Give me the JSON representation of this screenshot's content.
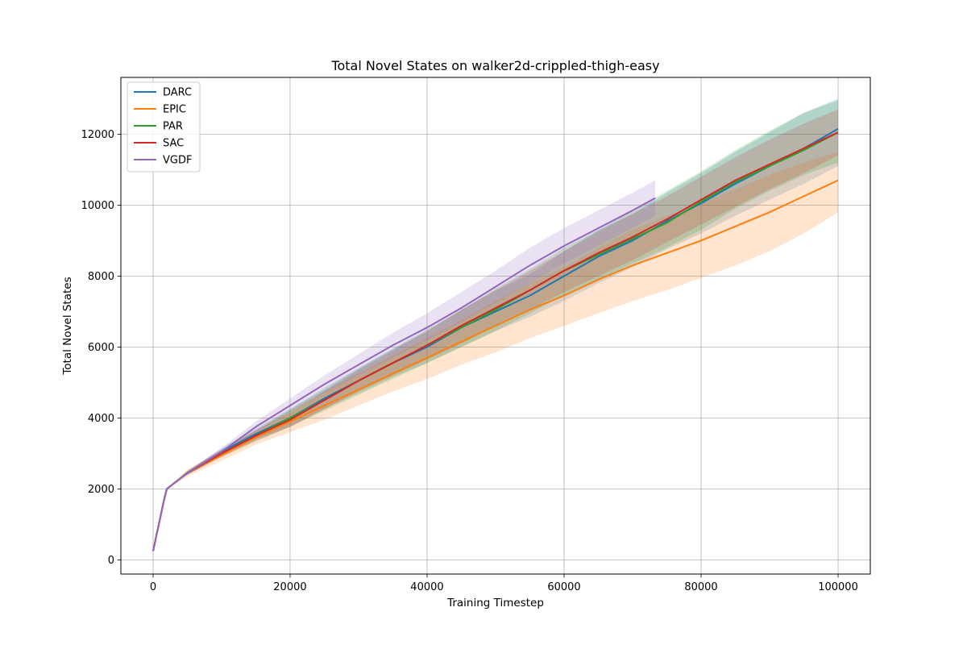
{
  "chart_data": {
    "type": "line",
    "title": "Total Novel States on walker2d-crippled-thigh-easy",
    "xlabel": "Training Timestep",
    "ylabel": "Total Novel States",
    "xlim": [
      -4700,
      104700
    ],
    "ylim": [
      -400,
      13600
    ],
    "xticks": [
      0,
      20000,
      40000,
      60000,
      80000,
      100000
    ],
    "yticks": [
      0,
      2000,
      4000,
      6000,
      8000,
      10000,
      12000
    ],
    "grid": true,
    "legend_position": "top-left",
    "series": [
      {
        "name": "DARC",
        "color": "#1f77b4",
        "x": [
          0,
          500,
          1000,
          1500,
          2000,
          5000,
          10000,
          15000,
          20000,
          25000,
          30000,
          35000,
          40000,
          45000,
          50000,
          55000,
          60000,
          65000,
          70000,
          75000,
          80000,
          85000,
          90000,
          95000,
          100000
        ],
        "y": [
          250,
          700,
          1150,
          1600,
          2000,
          2450,
          3050,
          3550,
          4000,
          4550,
          5050,
          5550,
          6000,
          6550,
          7000,
          7450,
          8000,
          8550,
          9000,
          9550,
          10050,
          10600,
          11100,
          11600,
          12150
        ],
        "lower": [
          250,
          700,
          1150,
          1600,
          2000,
          2400,
          2950,
          3400,
          3750,
          4250,
          4700,
          5150,
          5550,
          6000,
          6450,
          6850,
          7300,
          7800,
          8250,
          8750,
          9200,
          9700,
          10150,
          10600,
          11100
        ],
        "upper": [
          250,
          700,
          1150,
          1600,
          2000,
          2500,
          3150,
          3700,
          4250,
          4850,
          5400,
          5950,
          6450,
          7050,
          7600,
          8050,
          8700,
          9300,
          9750,
          10350,
          10900,
          11500,
          12050,
          12600,
          13000
        ]
      },
      {
        "name": "EPIC",
        "color": "#ff7f0e",
        "x": [
          0,
          500,
          1000,
          1500,
          2000,
          5000,
          10000,
          15000,
          20000,
          25000,
          30000,
          35000,
          40000,
          45000,
          50000,
          55000,
          60000,
          65000,
          70000,
          75000,
          80000,
          85000,
          90000,
          95000,
          100000
        ],
        "y": [
          250,
          700,
          1150,
          1600,
          2000,
          2450,
          2950,
          3450,
          3900,
          4350,
          4800,
          5250,
          5700,
          6150,
          6600,
          7050,
          7450,
          7900,
          8300,
          8650,
          9000,
          9400,
          9800,
          10250,
          10700
        ],
        "lower": [
          250,
          700,
          1150,
          1600,
          2000,
          2350,
          2800,
          3250,
          3600,
          3950,
          4350,
          4750,
          5100,
          5500,
          5850,
          6250,
          6600,
          6950,
          7300,
          7600,
          7950,
          8300,
          8700,
          9200,
          9800
        ],
        "upper": [
          250,
          700,
          1150,
          1600,
          2000,
          2550,
          3100,
          3650,
          4200,
          4750,
          5250,
          5750,
          6250,
          6750,
          7300,
          7800,
          8250,
          8800,
          9300,
          9700,
          10050,
          10450,
          10850,
          11200,
          11500
        ]
      },
      {
        "name": "PAR",
        "color": "#2ca02c",
        "x": [
          0,
          500,
          1000,
          1500,
          2000,
          5000,
          10000,
          15000,
          20000,
          25000,
          30000,
          35000,
          40000,
          45000,
          50000,
          55000,
          60000,
          65000,
          70000,
          75000,
          80000,
          85000,
          90000,
          95000,
          100000
        ],
        "y": [
          250,
          700,
          1150,
          1600,
          2000,
          2450,
          3000,
          3500,
          4000,
          4500,
          5050,
          5550,
          6050,
          6550,
          7050,
          7600,
          8150,
          8600,
          9050,
          9500,
          10100,
          10650,
          11100,
          11550,
          12050
        ],
        "lower": [
          250,
          700,
          1150,
          1600,
          2000,
          2400,
          2900,
          3350,
          3750,
          4200,
          4650,
          5100,
          5550,
          6000,
          6450,
          6950,
          7450,
          7900,
          8350,
          8800,
          9300,
          9900,
          10400,
          10850,
          11200
        ],
        "upper": [
          250,
          700,
          1150,
          1600,
          2000,
          2500,
          3100,
          3650,
          4250,
          4800,
          5400,
          5950,
          6500,
          7050,
          7650,
          8200,
          8800,
          9300,
          9850,
          10400,
          10950,
          11550,
          12100,
          12600,
          12950
        ]
      },
      {
        "name": "SAC",
        "color": "#d62728",
        "x": [
          0,
          500,
          1000,
          1500,
          2000,
          5000,
          10000,
          15000,
          20000,
          25000,
          30000,
          35000,
          40000,
          45000,
          50000,
          55000,
          60000,
          65000,
          70000,
          75000,
          80000,
          85000,
          90000,
          95000,
          100000
        ],
        "y": [
          250,
          700,
          1150,
          1600,
          2000,
          2450,
          3000,
          3500,
          3950,
          4500,
          5050,
          5550,
          6050,
          6600,
          7100,
          7600,
          8150,
          8650,
          9100,
          9600,
          10150,
          10700,
          11150,
          11600,
          12050
        ],
        "lower": [
          250,
          700,
          1150,
          1600,
          2000,
          2400,
          2900,
          3350,
          3750,
          4250,
          4750,
          5200,
          5650,
          6100,
          6600,
          7050,
          7550,
          8000,
          8450,
          8950,
          9450,
          9950,
          10450,
          10900,
          11400
        ],
        "upper": [
          250,
          700,
          1150,
          1600,
          2000,
          2500,
          3100,
          3650,
          4150,
          4750,
          5350,
          5900,
          6450,
          7050,
          7600,
          8150,
          8700,
          9250,
          9750,
          10250,
          10800,
          11350,
          11850,
          12300,
          12700
        ]
      },
      {
        "name": "VGDF",
        "color": "#9467bd",
        "x": [
          0,
          500,
          1000,
          1500,
          2000,
          5000,
          10000,
          15000,
          20000,
          25000,
          30000,
          35000,
          40000,
          45000,
          50000,
          55000,
          60000,
          65000,
          70000,
          73300
        ],
        "y": [
          250,
          700,
          1150,
          1600,
          2000,
          2450,
          3050,
          3750,
          4350,
          4950,
          5500,
          6050,
          6550,
          7100,
          7700,
          8300,
          8850,
          9350,
          9850,
          10200
        ],
        "lower": [
          250,
          700,
          1150,
          1600,
          2000,
          2400,
          2950,
          3600,
          4150,
          4700,
          5200,
          5700,
          6200,
          6700,
          7250,
          7800,
          8350,
          8850,
          9350,
          9700
        ],
        "upper": [
          250,
          700,
          1150,
          1600,
          2000,
          2500,
          3150,
          3900,
          4550,
          5200,
          5800,
          6400,
          6950,
          7550,
          8150,
          8800,
          9350,
          9850,
          10350,
          10700
        ]
      }
    ]
  }
}
